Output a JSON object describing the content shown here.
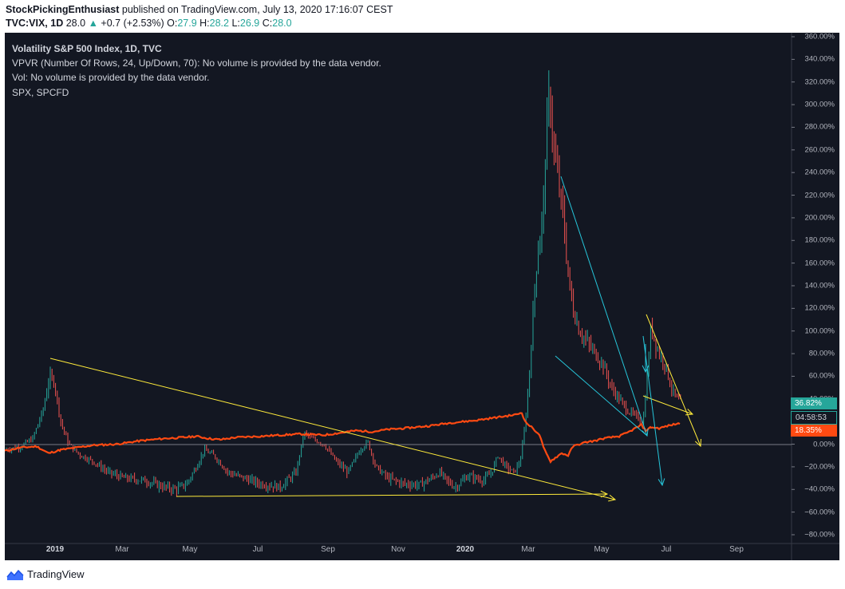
{
  "header": {
    "author": "StockPickingEnthusiast",
    "published": " published on TradingView.com, July 13, 2020 17:16:07 CEST",
    "symbol": "TVC:VIX, 1D",
    "last": "28.0",
    "change": "+0.7 (+2.53%)",
    "o_label": "O:",
    "o": "27.9",
    "h_label": "H:",
    "h": "28.2",
    "l_label": "L:",
    "l": "26.9",
    "c_label": "C:",
    "c": "28.0"
  },
  "legend": {
    "title": "Volatility S&P 500 Index, 1D, TVC",
    "vpvr": "VPVR (Number Of Rows, 24, Up/Down, 70): No volume is provided by the data vendor.",
    "vol": "Vol: No volume is provided by the data vendor.",
    "spx": "SPX, SPCFD"
  },
  "chart_data": {
    "type": "line",
    "y_axis_ticks": [
      "360.00%",
      "340.00%",
      "320.00%",
      "300.00%",
      "280.00%",
      "260.00%",
      "240.00%",
      "220.00%",
      "200.00%",
      "180.00%",
      "160.00%",
      "140.00%",
      "120.00%",
      "100.00%",
      "80.00%",
      "60.00%",
      "40.00%",
      "20.00%",
      "0.00%",
      "−20.00%",
      "−40.00%",
      "−60.00%",
      "−80.00%"
    ],
    "x_axis_ticks": [
      {
        "label": "2019",
        "year": true
      },
      {
        "label": "Mar"
      },
      {
        "label": "May"
      },
      {
        "label": "Jul"
      },
      {
        "label": "Sep"
      },
      {
        "label": "Nov"
      },
      {
        "label": "2020",
        "year": true
      },
      {
        "label": "Mar"
      },
      {
        "label": "May"
      },
      {
        "label": "Jul"
      },
      {
        "label": "Sep"
      }
    ],
    "ylim": [
      -80,
      360
    ],
    "series": [
      {
        "name": "VIX",
        "color": "#26a69a",
        "down_color": "#ef5350",
        "style": "bars"
      },
      {
        "name": "SPX",
        "color": "#ff4a12"
      }
    ],
    "badges": {
      "vix_pct": "36.82%",
      "countdown": "04:58:53",
      "spx_pct": "18.35%"
    },
    "drawing_colors": {
      "trend": "#ffeb3b",
      "projection": "#26c6da"
    }
  },
  "footer": {
    "brand": "TradingView"
  }
}
